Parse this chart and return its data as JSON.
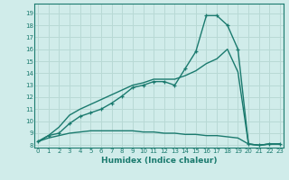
{
  "line1_x": [
    0,
    1,
    2,
    3,
    4,
    5,
    6,
    7,
    8,
    9,
    10,
    11,
    12,
    13,
    14,
    15,
    16,
    17,
    18,
    19,
    20,
    21,
    22,
    23
  ],
  "line1_y": [
    8.3,
    8.8,
    9.0,
    9.8,
    10.4,
    10.7,
    11.0,
    11.5,
    12.1,
    12.8,
    13.0,
    13.3,
    13.3,
    13.0,
    14.4,
    15.8,
    18.8,
    18.8,
    18.0,
    16.0,
    8.1,
    8.0,
    8.1,
    8.1
  ],
  "line2_x": [
    0,
    1,
    2,
    3,
    4,
    5,
    6,
    7,
    8,
    9,
    10,
    11,
    12,
    13,
    14,
    15,
    16,
    17,
    18,
    19,
    20,
    21,
    22,
    23
  ],
  "line2_y": [
    8.3,
    8.8,
    9.5,
    10.5,
    11.0,
    11.4,
    11.8,
    12.2,
    12.6,
    13.0,
    13.2,
    13.5,
    13.5,
    13.5,
    13.8,
    14.2,
    14.8,
    15.2,
    16.0,
    14.1,
    8.1,
    8.0,
    8.1,
    8.1
  ],
  "line3_x": [
    0,
    1,
    2,
    3,
    4,
    5,
    6,
    7,
    8,
    9,
    10,
    11,
    12,
    13,
    14,
    15,
    16,
    17,
    18,
    19,
    20,
    21,
    22,
    23
  ],
  "line3_y": [
    8.3,
    8.6,
    8.8,
    9.0,
    9.1,
    9.2,
    9.2,
    9.2,
    9.2,
    9.2,
    9.1,
    9.1,
    9.0,
    9.0,
    8.9,
    8.9,
    8.8,
    8.8,
    8.7,
    8.6,
    8.1,
    8.0,
    8.1,
    8.1
  ],
  "line_color": "#1a7a6e",
  "bg_color": "#d0ecea",
  "grid_color": "#b8d9d5",
  "xlabel": "Humidex (Indice chaleur)",
  "ylabel_ticks": [
    8,
    9,
    10,
    11,
    12,
    13,
    14,
    15,
    16,
    17,
    18,
    19
  ],
  "xticks": [
    0,
    1,
    2,
    3,
    4,
    5,
    6,
    7,
    8,
    9,
    10,
    11,
    12,
    13,
    14,
    15,
    16,
    17,
    18,
    19,
    20,
    21,
    22,
    23
  ],
  "ylim": [
    7.8,
    19.8
  ],
  "xlim": [
    -0.3,
    23.3
  ],
  "marker": "+"
}
